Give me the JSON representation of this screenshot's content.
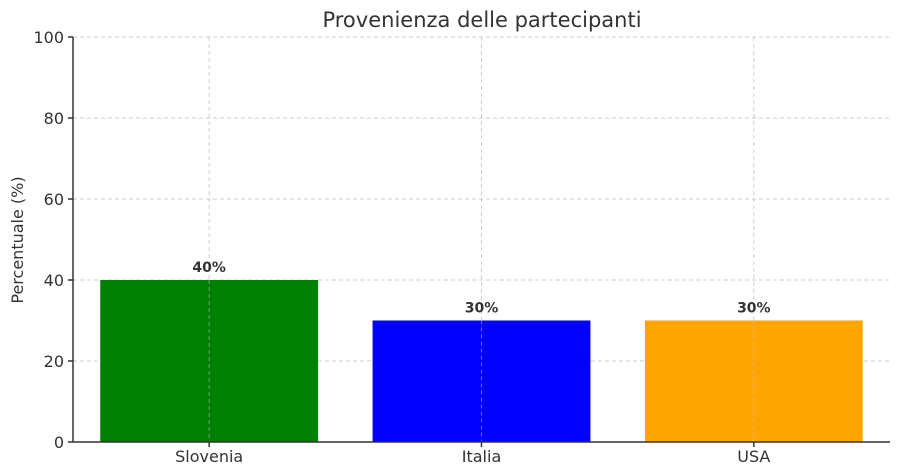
{
  "chart_data": {
    "type": "bar",
    "title": "Provenienza delle partecipanti",
    "xlabel": "",
    "ylabel": "Percentuale (%)",
    "categories": [
      "Slovenia",
      "Italia",
      "USA"
    ],
    "values": [
      40,
      30,
      30
    ],
    "value_labels": [
      "40%",
      "30%",
      "30%"
    ],
    "colors": [
      "#008000",
      "#0000ff",
      "#ffa500"
    ],
    "ylim": [
      0,
      100
    ],
    "yticks": [
      0,
      20,
      40,
      60,
      80,
      100
    ],
    "grid": true
  }
}
